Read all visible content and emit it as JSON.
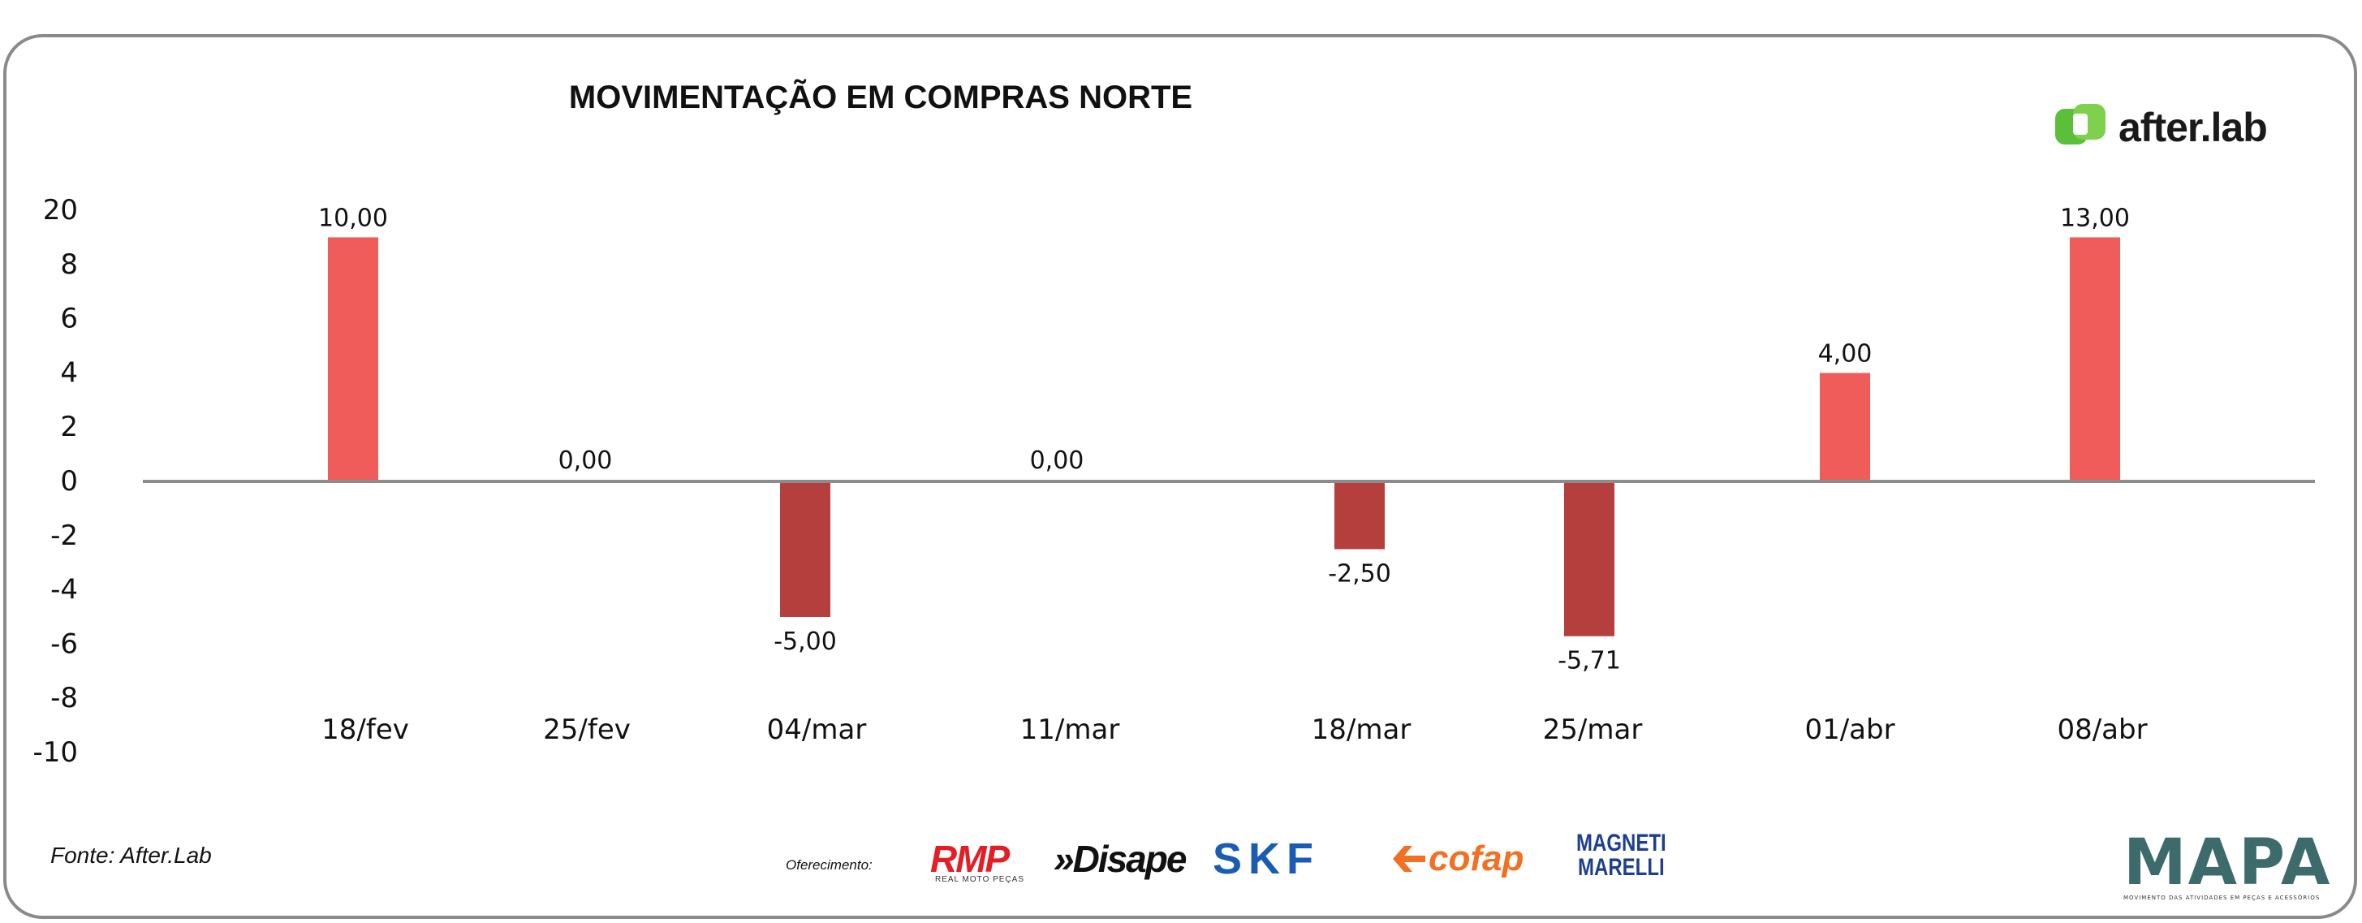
{
  "title": "MOVIMENTAÇÃO EM COMPRAS NORTE",
  "source": "Fonte: After.Lab",
  "offer_label": "Oferecimento:",
  "brand": {
    "name": "after.lab",
    "accent": "#5bbf3a"
  },
  "sponsors": {
    "rmp": "RMP",
    "rmp_sub": "REAL MOTO PEÇAS",
    "disape": "»Disape",
    "skf": "SKF",
    "cofap": "cofap",
    "magneti_1": "MAGNETI",
    "magneti_2": "MARELLI",
    "mapa": "MAPA",
    "mapa_sub": "MOVIMENTO DAS ATIVIDADES EM PEÇAS E ACESSÓRIOS"
  },
  "chart_data": {
    "type": "bar",
    "title": "MOVIMENTAÇÃO EM COMPRAS NORTE",
    "categories": [
      "18/fev",
      "25/fev",
      "04/mar",
      "11/mar",
      "18/mar",
      "25/mar",
      "01/abr",
      "08/abr"
    ],
    "series": [
      {
        "values": [
          10.0,
          0.0,
          -5.0,
          0.0,
          -2.5,
          -5.71,
          4.0,
          13.0
        ]
      }
    ],
    "data_labels": [
      "10,00",
      "0,00",
      "-5,00",
      "0,00",
      "-2,50",
      "-5,71",
      "4,00",
      "13,00"
    ],
    "y_ticks": [
      "20",
      "8",
      "6",
      "4",
      "2",
      "0",
      "-2",
      "-4",
      "-6",
      "-8",
      "-10"
    ],
    "colors": {
      "positive": "#f05c59",
      "negative": "#b53f3d",
      "axis": "#8c8c8c"
    },
    "grid": false
  }
}
